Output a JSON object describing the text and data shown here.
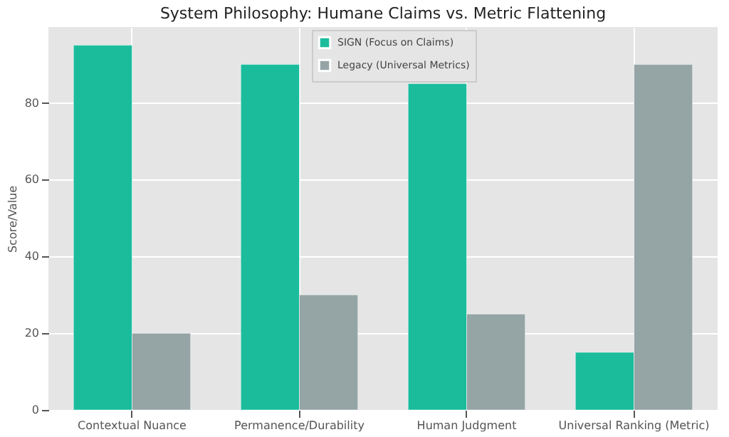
{
  "chart_data": {
    "type": "bar",
    "title": "System Philosophy: Humane Claims vs. Metric Flattening",
    "ylabel": "Score/Value",
    "categories": [
      "Contextual Nuance",
      "Permanence/Durability",
      "Human Judgment",
      "Universal Ranking (Metric)"
    ],
    "series": [
      {
        "name": "SIGN (Focus on Claims)",
        "color": "#1abc9c",
        "values": [
          95,
          90,
          85,
          15
        ]
      },
      {
        "name": "Legacy (Universal Metrics)",
        "color": "#95a5a6",
        "values": [
          20,
          30,
          25,
          90
        ]
      }
    ],
    "ylim": [
      0,
      99.75
    ],
    "yticks": [
      0,
      20,
      40,
      60,
      80
    ],
    "grid": true,
    "legend": "top"
  }
}
